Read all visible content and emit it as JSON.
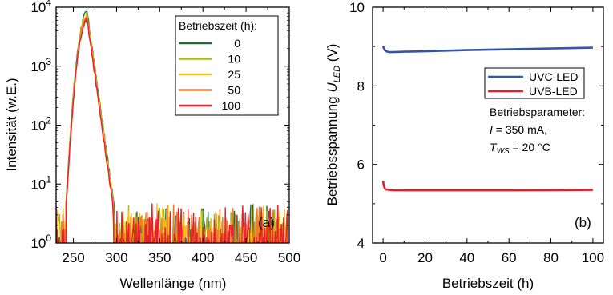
{
  "chart_data": [
    {
      "type": "line",
      "panel_label": "(a)",
      "xlabel": "Wellenlänge (nm)",
      "ylabel": "Intensität (w.E.)",
      "xlim": [
        230,
        500
      ],
      "ylim": [
        1,
        10000
      ],
      "yscale": "log",
      "xticks": [
        "250",
        "300",
        "350",
        "400",
        "450",
        "500"
      ],
      "yticks": [
        {
          "base": "10",
          "exp": "0"
        },
        {
          "base": "10",
          "exp": "1"
        },
        {
          "base": "10",
          "exp": "2"
        },
        {
          "base": "10",
          "exp": "3"
        },
        {
          "base": "10",
          "exp": "4"
        }
      ],
      "legend_title": "Betriebszeit (h):",
      "legend_position": "top-right",
      "peak_nm": 266,
      "series": [
        {
          "name": "0",
          "color": "#1e6b3c",
          "peak": 8200
        },
        {
          "name": "10",
          "color": "#a8b820",
          "peak": 7500
        },
        {
          "name": "25",
          "color": "#f0c419",
          "peak": 7000
        },
        {
          "name": "50",
          "color": "#f07a2a",
          "peak": 6500
        },
        {
          "name": "100",
          "color": "#e8202a",
          "peak": 6000
        }
      ]
    },
    {
      "type": "line",
      "panel_label": "(b)",
      "xlabel": "Betriebszeit (h)",
      "ylabel": {
        "main": "Betriebsspannung ",
        "var": "U",
        "sub": "LED",
        "unit": " (V)"
      },
      "xlim": [
        -5,
        105
      ],
      "ylim": [
        4,
        10
      ],
      "xticks": [
        "0",
        "20",
        "40",
        "60",
        "80",
        "100"
      ],
      "yticks": [
        "4",
        "6",
        "8",
        "10"
      ],
      "legend_position": "top-right",
      "series": [
        {
          "name": "UVC-LED",
          "color": "#3355aa",
          "x": [
            0,
            0.3,
            0.8,
            1.5,
            3,
            5,
            10,
            20,
            40,
            60,
            80,
            100
          ],
          "y": [
            9.02,
            8.96,
            8.91,
            8.88,
            8.86,
            8.86,
            8.87,
            8.88,
            8.91,
            8.93,
            8.95,
            8.97
          ]
        },
        {
          "name": "UVB-LED",
          "color": "#e0202a",
          "x": [
            0,
            0.3,
            0.8,
            1.5,
            3,
            5,
            10,
            20,
            40,
            60,
            80,
            100
          ],
          "y": [
            5.58,
            5.46,
            5.39,
            5.36,
            5.35,
            5.345,
            5.34,
            5.34,
            5.34,
            5.34,
            5.345,
            5.35
          ]
        }
      ],
      "annotation": {
        "title": "Betriebsparameter:",
        "line1": {
          "var": "I",
          "text": " = 350 mA,"
        },
        "line2": {
          "var": "T",
          "sub": "WS",
          "text": " = 20 °C"
        }
      }
    }
  ]
}
